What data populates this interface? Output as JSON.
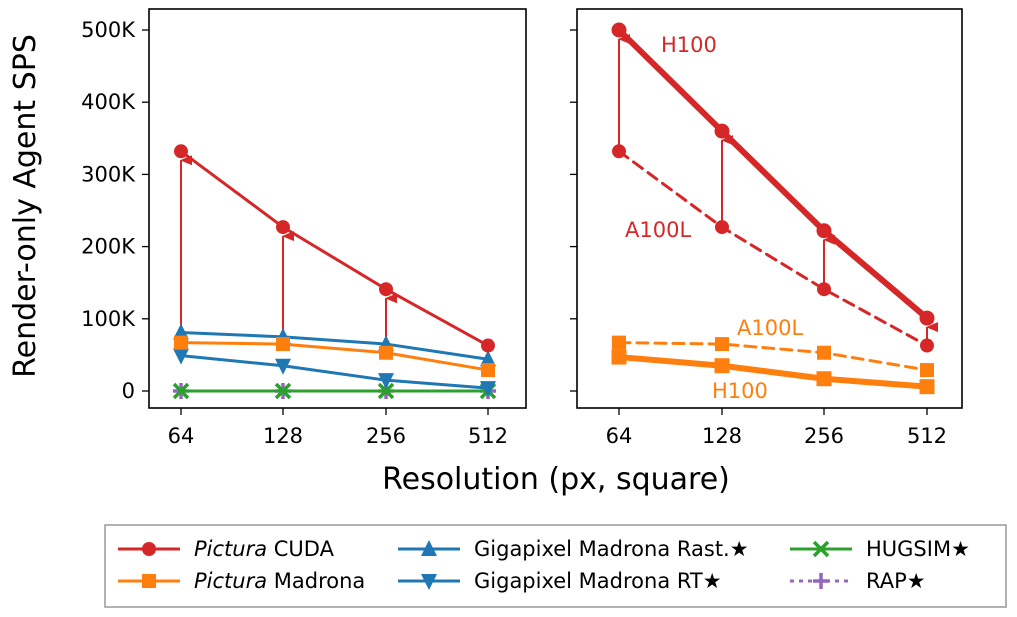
{
  "chart_data": [
    {
      "type": "line",
      "panel": "left",
      "ylabel": "Render-only Agent SPS",
      "xlabel": "Resolution (px, square)",
      "x": [
        "64",
        "128",
        "256",
        "512"
      ],
      "y_ticks": [
        "0",
        "100K",
        "200K",
        "300K",
        "400K",
        "500K"
      ],
      "ylim": [
        0,
        530000
      ],
      "x_scale": "log2",
      "grid": false,
      "series": [
        {
          "key": "cuda",
          "name_italic": "Pictura",
          "name_rest": " CUDA",
          "color": "#d62728",
          "marker": "circle",
          "style": "solid",
          "values": [
            332000,
            227000,
            141000,
            63000
          ]
        },
        {
          "key": "madrona",
          "name_italic": "Pictura",
          "name_rest": " Madrona",
          "color": "#ff7f0e",
          "marker": "square",
          "style": "solid",
          "values": [
            67000,
            65000,
            53000,
            29000
          ]
        },
        {
          "key": "gm_rast",
          "name": "Gigapixel Madrona Rast.★",
          "color": "#1f77b4",
          "marker": "triangle-up",
          "style": "solid",
          "values": [
            81000,
            75000,
            65000,
            44000
          ]
        },
        {
          "key": "gm_rt",
          "name": "Gigapixel Madrona RT★",
          "color": "#1f77b4",
          "marker": "triangle-down",
          "style": "solid",
          "values": [
            49000,
            35000,
            15000,
            4000
          ]
        },
        {
          "key": "hugsim",
          "name": "HUGSIM★",
          "color": "#2ca02c",
          "marker": "x",
          "style": "solid",
          "values": [
            0,
            0,
            0,
            0
          ]
        },
        {
          "key": "rap",
          "name": "RAP★",
          "color": "#9467bd",
          "marker": "plus",
          "style": "dotted",
          "values": [
            0,
            0,
            0,
            0
          ]
        }
      ],
      "arrows": {
        "from_series": "madrona",
        "to_series": "cuda",
        "color": "#d62728",
        "x_index": [
          0,
          1,
          2
        ]
      }
    },
    {
      "type": "line",
      "panel": "right",
      "x": [
        "64",
        "128",
        "256",
        "512"
      ],
      "ylim": [
        0,
        530000
      ],
      "x_scale": "log2",
      "grid": false,
      "series": [
        {
          "key": "cuda_h100",
          "color": "#d62728",
          "marker": "circle",
          "style": "thick",
          "values": [
            500000,
            360000,
            222000,
            101000
          ]
        },
        {
          "key": "cuda_a100l",
          "color": "#d62728",
          "marker": "circle",
          "style": "dashed",
          "values": [
            332000,
            227000,
            141000,
            63000
          ]
        },
        {
          "key": "madrona_h100",
          "color": "#ff7f0e",
          "marker": "square",
          "style": "thick",
          "values": [
            47000,
            35000,
            17000,
            6000
          ]
        },
        {
          "key": "madrona_a100l",
          "color": "#ff7f0e",
          "marker": "square",
          "style": "dashed",
          "values": [
            67000,
            65000,
            53000,
            29000
          ]
        }
      ],
      "arrows": {
        "from_series": "cuda_a100l",
        "to_series": "cuda_h100",
        "color": "#d62728",
        "x_index": [
          0,
          1,
          2,
          3
        ]
      },
      "annotations": [
        {
          "text": "H100",
          "color": "#d62728"
        },
        {
          "text": "A100L",
          "color": "#d62728"
        },
        {
          "text": "A100L",
          "color": "#ff7f0e"
        },
        {
          "text": "H100",
          "color": "#ff7f0e"
        }
      ]
    }
  ],
  "legend": {
    "placement": "bottom",
    "items": [
      {
        "key": "cuda"
      },
      {
        "key": "madrona"
      },
      {
        "key": "gm_rast"
      },
      {
        "key": "gm_rt"
      },
      {
        "key": "hugsim"
      },
      {
        "key": "rap"
      }
    ]
  }
}
